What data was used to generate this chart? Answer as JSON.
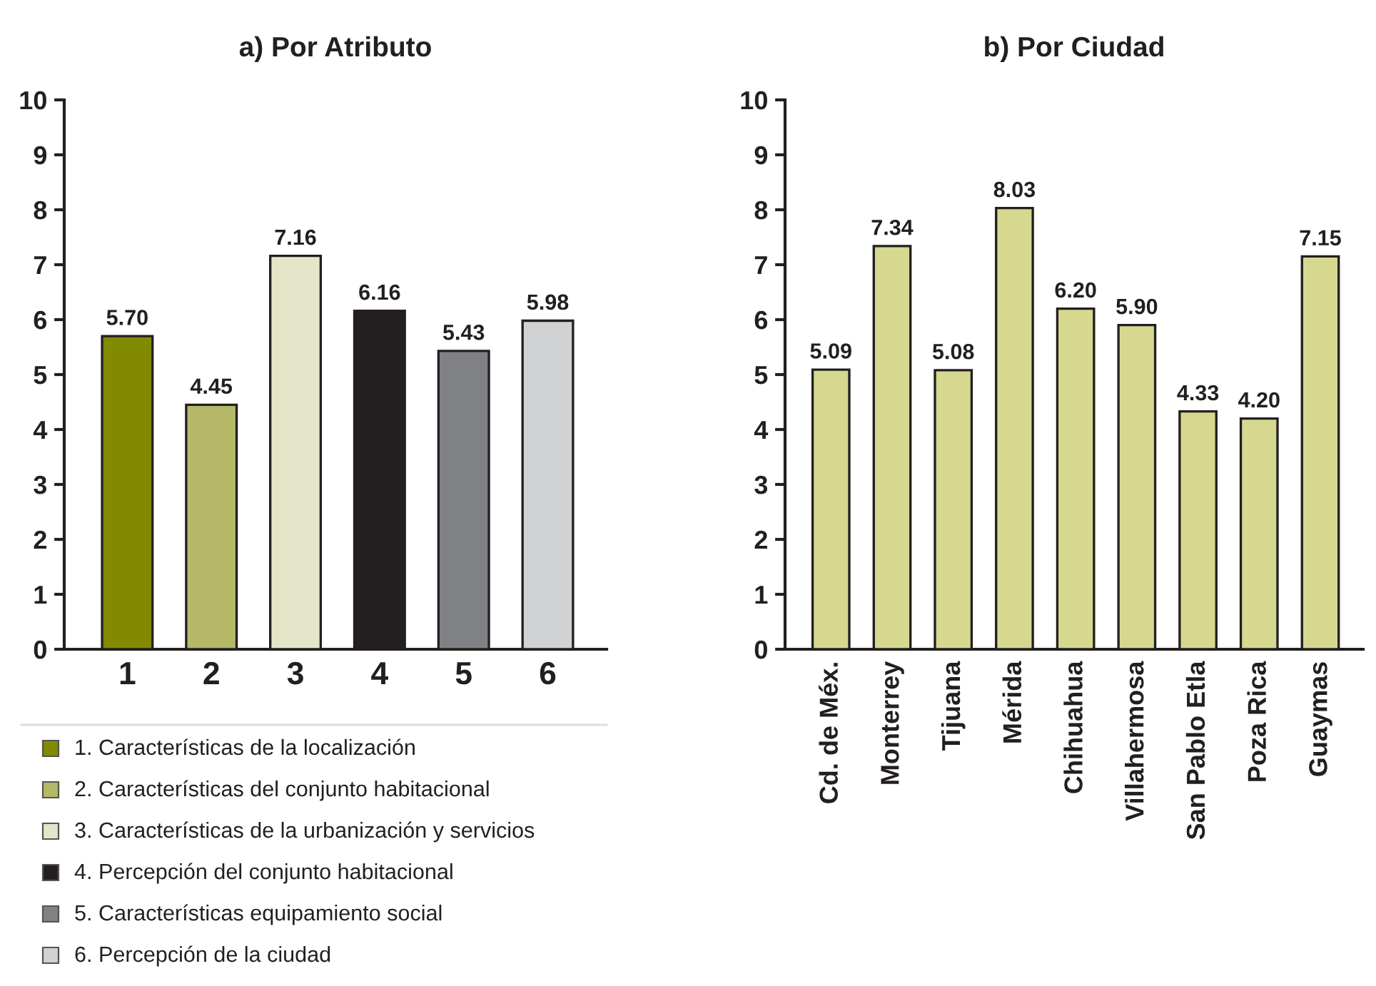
{
  "chart_data": [
    {
      "type": "bar",
      "title": "a) Por Atributo",
      "categories": [
        "1",
        "2",
        "3",
        "4",
        "5",
        "6"
      ],
      "ylim": [
        0,
        10
      ],
      "yticks": [
        0,
        1,
        2,
        3,
        4,
        5,
        6,
        7,
        8,
        9,
        10
      ],
      "grid": false,
      "legend": "bottom",
      "series": [
        {
          "name": "1. Características de la localización",
          "color": "#828a00",
          "values": [
            5.7,
            null,
            null,
            null,
            null,
            null
          ],
          "value_labels": [
            "5.70",
            null,
            null,
            null,
            null,
            null
          ]
        },
        {
          "name": "2. Características del conjunto habitacional",
          "color": "#b5b867",
          "values": [
            null,
            4.45,
            null,
            null,
            null,
            null
          ],
          "value_labels": [
            null,
            "4.45",
            null,
            null,
            null,
            null
          ]
        },
        {
          "name": "3. Características de la urbanización y servicios",
          "color": "#e4e6c9",
          "values": [
            null,
            null,
            7.16,
            null,
            null,
            null
          ],
          "value_labels": [
            null,
            null,
            "7.16",
            null,
            null,
            null
          ]
        },
        {
          "name": "4. Percepción del conjunto habitacional",
          "color": "#231f20",
          "values": [
            null,
            null,
            null,
            6.16,
            null,
            null
          ],
          "value_labels": [
            null,
            null,
            null,
            "6.16",
            null,
            null
          ]
        },
        {
          "name": "5. Características equipamiento social",
          "color": "#808184",
          "values": [
            null,
            null,
            null,
            null,
            5.43,
            null
          ],
          "value_labels": [
            null,
            null,
            null,
            null,
            "5.43",
            null
          ]
        },
        {
          "name": "6. Percepción de la ciudad",
          "color": "#d1d2d4",
          "values": [
            null,
            null,
            null,
            null,
            null,
            5.98
          ],
          "value_labels": [
            null,
            null,
            null,
            null,
            null,
            "5.98"
          ]
        }
      ]
    },
    {
      "type": "bar",
      "title": "b) Por Ciudad",
      "categories": [
        "Cd. de Méx.",
        "Monterrey",
        "Tijuana",
        "Mérida",
        "Chihuahua",
        "Villahermosa",
        "San Pablo Etla",
        "Poza Rica",
        "Guaymas"
      ],
      "ylim": [
        0,
        10
      ],
      "yticks": [
        0,
        1,
        2,
        3,
        4,
        5,
        6,
        7,
        8,
        9,
        10
      ],
      "grid": false,
      "legend": false,
      "series": [
        {
          "color": "#d6d88f",
          "values": [
            5.09,
            7.34,
            5.08,
            8.03,
            6.2,
            5.9,
            4.33,
            4.2,
            7.15
          ],
          "value_labels": [
            "5.09",
            "7.34",
            "5.08",
            "8.03",
            "6.20",
            "5.90",
            "4.33",
            "4.20",
            "7.15"
          ]
        }
      ]
    }
  ]
}
